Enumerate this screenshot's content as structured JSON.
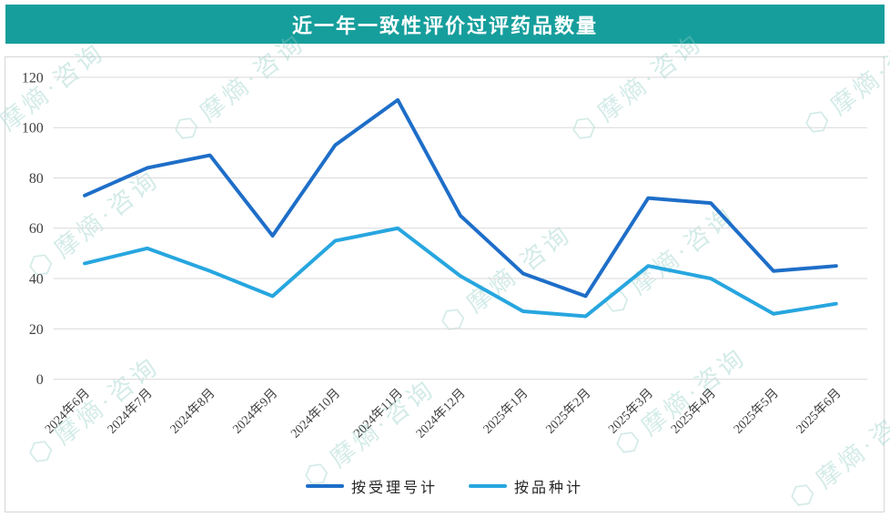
{
  "header": {
    "title": "近一年一致性评价过评药品数量",
    "bg_color": "#169E9C",
    "text_color": "#FFFFFF"
  },
  "watermark": {
    "text": "摩熵·咨询",
    "color": "#8ECDC3"
  },
  "colors": {
    "gridline": "#D9D9D9",
    "axis_text": "#404040",
    "panel_border": "#D6D6D6",
    "series_dark_blue": "#1E6EC8",
    "series_light_blue": "#27A6DF"
  },
  "chart_data": {
    "type": "line",
    "title": "近一年一致性评价过评药品数量",
    "categories": [
      "2024年6月",
      "2024年7月",
      "2024年8月",
      "2024年9月",
      "2024年10月",
      "2024年11月",
      "2024年12月",
      "2025年1月",
      "2025年2月",
      "2025年3月",
      "2025年4月",
      "2025年5月",
      "2025年6月"
    ],
    "series": [
      {
        "name": "按受理号计",
        "color": "#1E6EC8",
        "values": [
          73,
          84,
          89,
          57,
          93,
          111,
          65,
          42,
          33,
          72,
          70,
          43,
          45
        ]
      },
      {
        "name": "按品种计",
        "color": "#27A6DF",
        "values": [
          46,
          52,
          43,
          33,
          55,
          60,
          41,
          27,
          25,
          45,
          40,
          26,
          30
        ]
      }
    ],
    "xlabel": "",
    "ylabel": "",
    "ylim": [
      0,
      120
    ],
    "ytick_step": 20,
    "grid": true,
    "legend_position": "bottom",
    "x_label_rotation_deg": -45
  }
}
